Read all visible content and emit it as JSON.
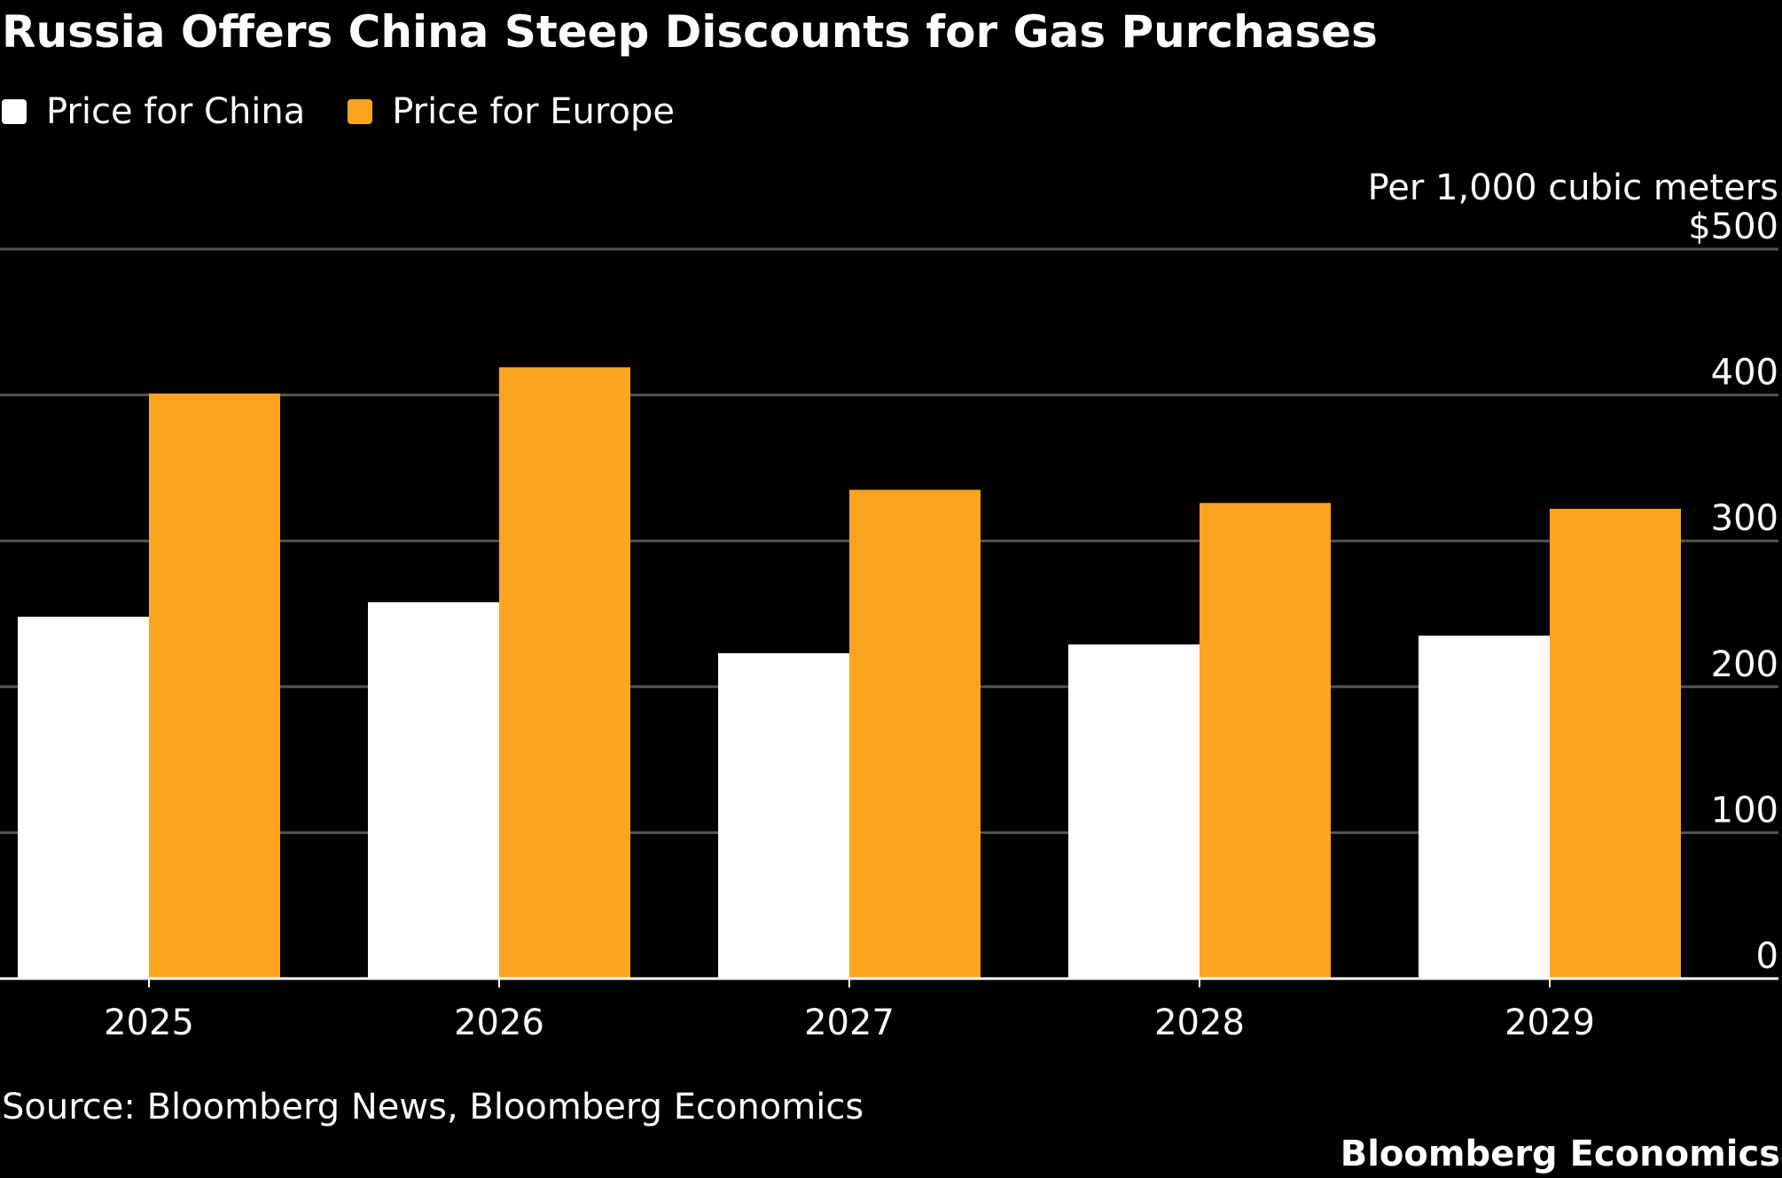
{
  "title": "Russia Offers China Steep Discounts for Gas Purchases",
  "source": "Source: Bloomberg News, Bloomberg Economics",
  "brand": "Bloomberg Economics",
  "colors": {
    "background": "#000000",
    "china": "#ffffff",
    "europe": "#fca41e",
    "gridline": "#555555",
    "text": "#ffffff"
  },
  "chart_data": {
    "type": "bar",
    "title": "Russia Offers China Steep Discounts for Gas Purchases",
    "categories": [
      "2025",
      "2026",
      "2027",
      "2028",
      "2029"
    ],
    "series": [
      {
        "name": "Price for China",
        "values": [
          248,
          258,
          223,
          229,
          235
        ]
      },
      {
        "name": "Price for Europe",
        "values": [
          401,
          419,
          335,
          326,
          322
        ]
      }
    ],
    "ylabel": "Per 1,000 cubic meters",
    "ylim": [
      0,
      500
    ],
    "yticks": [
      0,
      100,
      200,
      300,
      400,
      500
    ],
    "ytick_labels": [
      "0",
      "100",
      "200",
      "300",
      "400",
      "$500"
    ],
    "grid": true,
    "legend": "top-left"
  }
}
